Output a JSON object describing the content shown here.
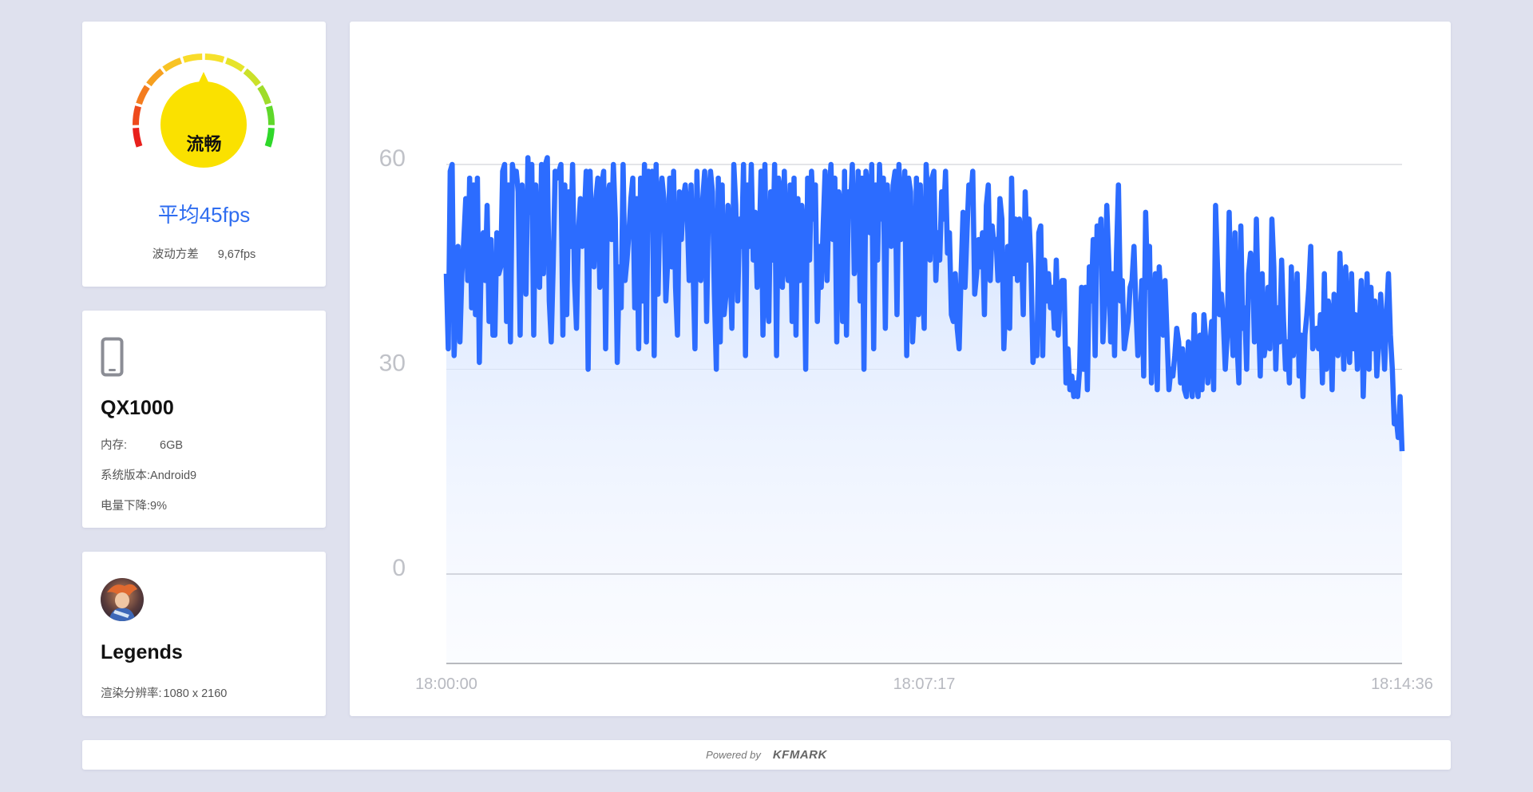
{
  "summary": {
    "gauge_label": "流畅",
    "avg_fps": "平均45fps",
    "variance_label": "波动方差",
    "variance_value": "9,67fps"
  },
  "device": {
    "name": "QX1000",
    "memory_label": "内存:",
    "memory_value": "6GB",
    "os_label": "系统版本:",
    "os_value": "Android9",
    "battery_label": "电量下降:",
    "battery_value": "9%"
  },
  "game": {
    "name": "Legends",
    "resolution_label": "渲染分辨率:",
    "resolution_value": "1080 x 2160"
  },
  "footer": {
    "powered_by": "Powered by",
    "brand": "KFMARK"
  },
  "colors": {
    "line": "#2c6cff",
    "gauge_fill": "#fae100",
    "avg_text": "#2f6df0"
  },
  "icons": [
    "phone-icon",
    "game-avatar"
  ],
  "chart_data": {
    "type": "line",
    "title": "",
    "xlabel": "",
    "ylabel": "",
    "ylim": [
      -13,
      60
    ],
    "yticks": [
      0,
      30,
      60
    ],
    "x_tick_labels": [
      "18:00:00",
      "18:07:17",
      "18:14:36"
    ],
    "series": [
      {
        "values": [
          44,
          33,
          59,
          60,
          32,
          40,
          48,
          34,
          44,
          49,
          55,
          43,
          58,
          39,
          57,
          38,
          58,
          31,
          47,
          50,
          43,
          54,
          37,
          49,
          35,
          35,
          50,
          44,
          45,
          59,
          60,
          37,
          57,
          34,
          60,
          58,
          59,
          56,
          35,
          57,
          49,
          41,
          61,
          53,
          60,
          35,
          57,
          47,
          42,
          60,
          44,
          60,
          61,
          40,
          34,
          45,
          59,
          58,
          59,
          60,
          35,
          57,
          38,
          56,
          48,
          60,
          43,
          36,
          50,
          55,
          48,
          52,
          59,
          30,
          59,
          48,
          45,
          55,
          58,
          42,
          57,
          59,
          33,
          55,
          57,
          49,
          60,
          52,
          31,
          45,
          39,
          60,
          43,
          46,
          50,
          55,
          58,
          39,
          55,
          33,
          58,
          40,
          60,
          34,
          59,
          57,
          59,
          32,
          60,
          41,
          55,
          58,
          55,
          40,
          46,
          58,
          45,
          59,
          42,
          35,
          56,
          49,
          55,
          57,
          53,
          43,
          57,
          45,
          33,
          59,
          47,
          43,
          55,
          59,
          37,
          55,
          59,
          56,
          41,
          30,
          58,
          34,
          57,
          38,
          41,
          54,
          46,
          36,
          60,
          54,
          40,
          52,
          48,
          60,
          32,
          57,
          48,
          60,
          46,
          53,
          42,
          47,
          59,
          35,
          60,
          40,
          37,
          56,
          46,
          60,
          32,
          58,
          56,
          42,
          59,
          46,
          43,
          57,
          37,
          58,
          35,
          55,
          43,
          54,
          50,
          30,
          58,
          46,
          59,
          52,
          57,
          37,
          48,
          42,
          51,
          59,
          43,
          55,
          60,
          49,
          58,
          34,
          56,
          54,
          37,
          59,
          35,
          56,
          53,
          60,
          44,
          47,
          59,
          40,
          58,
          30,
          59,
          56,
          50,
          60,
          33,
          57,
          46,
          60,
          52,
          58,
          36,
          57,
          51,
          48,
          57,
          59,
          38,
          60,
          49,
          53,
          59,
          32,
          58,
          56,
          34,
          40,
          58,
          38,
          57,
          43,
          36,
          60,
          54,
          46,
          58,
          59,
          43,
          50,
          46,
          56,
          52,
          59,
          47,
          50,
          38,
          37,
          44,
          36,
          33,
          44,
          53,
          42,
          50,
          57,
          55,
          59,
          41,
          44,
          49,
          45,
          50,
          38,
          54,
          57,
          43,
          51,
          48,
          49,
          43,
          55,
          52,
          33,
          40,
          48,
          36,
          58,
          44,
          52,
          43,
          52,
          48,
          38,
          56,
          46,
          52,
          45,
          31,
          34,
          32,
          50,
          51,
          32,
          46,
          40,
          44,
          39,
          42,
          36,
          46,
          35,
          41,
          43,
          43,
          28,
          33,
          27,
          29,
          26,
          28,
          26,
          30,
          42,
          30,
          42,
          27,
          45,
          40,
          49,
          32,
          51,
          48,
          52,
          34,
          40,
          54,
          46,
          34,
          44,
          32,
          47,
          57,
          40,
          43,
          33,
          35,
          37,
          42,
          43,
          48,
          39,
          32,
          35,
          43,
          29,
          53,
          42,
          48,
          28,
          37,
          44,
          27,
          45,
          39,
          35,
          43,
          35,
          27,
          30,
          29,
          32,
          36,
          34,
          28,
          33,
          27,
          26,
          34,
          30,
          26,
          38,
          29,
          26,
          35,
          27,
          38,
          34,
          28,
          33,
          37,
          27,
          54,
          45,
          38,
          41,
          37,
          30,
          35,
          53,
          39,
          32,
          50,
          34,
          28,
          51,
          36,
          39,
          30,
          44,
          47,
          45,
          34,
          52,
          39,
          29,
          44,
          32,
          34,
          42,
          33,
          52,
          45,
          30,
          39,
          34,
          46,
          37,
          30,
          34,
          28,
          45,
          32,
          36,
          44,
          29,
          35,
          26,
          35,
          38,
          42,
          48,
          33,
          34,
          36,
          33,
          38,
          28,
          44,
          30,
          40,
          38,
          27,
          41,
          36,
          32,
          47,
          39,
          30,
          45,
          36,
          31,
          44,
          33,
          38,
          30,
          36,
          43,
          26,
          36,
          44,
          30,
          42,
          33,
          40,
          29,
          34,
          41,
          36,
          30,
          38,
          44,
          35,
          30,
          22,
          23,
          20,
          26,
          18
        ]
      }
    ]
  }
}
